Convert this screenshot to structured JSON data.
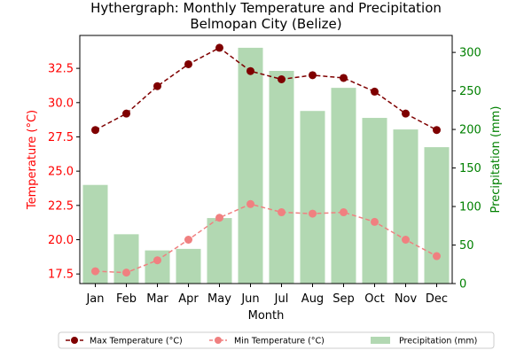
{
  "chart_data": {
    "type": "bar",
    "title": "Hythergraph: Monthly Temperature and Precipitation",
    "subtitle": "Belmopan City (Belize)",
    "xlabel": "Month",
    "ylabel_left": "Temperature (°C)",
    "ylabel_right": "Precipitation (mm)",
    "categories": [
      "Jan",
      "Feb",
      "Mar",
      "Apr",
      "May",
      "Jun",
      "Jul",
      "Aug",
      "Sep",
      "Oct",
      "Nov",
      "Dec"
    ],
    "ylim_left": [
      16.8,
      34.9
    ],
    "ylim_right": [
      0,
      322
    ],
    "yticks_left": [
      "17.5",
      "20.0",
      "22.5",
      "25.0",
      "27.5",
      "30.0",
      "32.5"
    ],
    "yticks_right": [
      "0",
      "50",
      "100",
      "150",
      "200",
      "250",
      "300"
    ],
    "grid": false,
    "legend_position": "bottom",
    "series": [
      {
        "name": "Max Temperature (°C)",
        "axis": "left",
        "type": "line",
        "color": "#7f0000",
        "values": [
          28.0,
          29.2,
          31.2,
          32.8,
          34.0,
          32.3,
          31.7,
          32.0,
          31.8,
          30.8,
          29.2,
          28.0
        ]
      },
      {
        "name": "Min Temperature (°C)",
        "axis": "left",
        "type": "line",
        "color": "#f08080",
        "values": [
          17.7,
          17.6,
          18.5,
          20.0,
          21.6,
          22.6,
          22.0,
          21.9,
          22.0,
          21.3,
          20.0,
          18.8
        ]
      },
      {
        "name": "Precipitation (mm)",
        "axis": "right",
        "type": "bar",
        "color": "#b2d8b2",
        "values": [
          128,
          64,
          43,
          45,
          85,
          306,
          276,
          224,
          254,
          215,
          200,
          177
        ]
      }
    ],
    "colors": {
      "left_axis": "#ff0000",
      "right_axis": "#008000"
    }
  }
}
